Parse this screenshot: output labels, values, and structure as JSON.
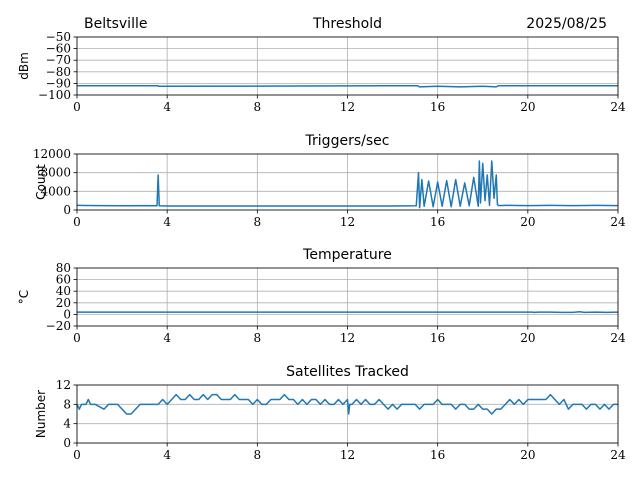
{
  "header": {
    "location": "Beltsville",
    "date": "2025/08/25"
  },
  "colors": {
    "series": "#1f77b4",
    "grid": "#b0b0b0"
  },
  "chart_data": [
    {
      "type": "line",
      "title": "Threshold",
      "ylabel": "dBm",
      "xlim": [
        0,
        24
      ],
      "ylim": [
        -100,
        -50
      ],
      "xticks": [
        0,
        4,
        8,
        12,
        16,
        20,
        24
      ],
      "yticks": [
        -100,
        -90,
        -80,
        -70,
        -60,
        -50
      ],
      "ytick_labels": [
        "−100",
        "−90",
        "−80",
        "−70",
        "−60",
        "−50"
      ],
      "grid": true,
      "x": [
        0,
        3.6,
        3.62,
        15.1,
        15.2,
        16,
        17,
        18,
        18.6,
        18.7,
        24
      ],
      "y": [
        -92,
        -92,
        -92.5,
        -92,
        -93,
        -92.5,
        -93,
        -92.5,
        -93,
        -92,
        -92
      ]
    },
    {
      "type": "line",
      "title": "Triggers/sec",
      "ylabel": "Count",
      "xlim": [
        0,
        24
      ],
      "ylim": [
        0,
        12000
      ],
      "xticks": [
        0,
        4,
        8,
        12,
        16,
        20,
        24
      ],
      "yticks": [
        0,
        4000,
        8000,
        12000
      ],
      "ytick_labels": [
        "0",
        "4000",
        "8000",
        "12000"
      ],
      "grid": true,
      "x": [
        0,
        1,
        2,
        3,
        3.55,
        3.6,
        3.65,
        4,
        6,
        8,
        10,
        12,
        14,
        15.05,
        15.15,
        15.2,
        15.3,
        15.4,
        15.6,
        15.8,
        16,
        16.2,
        16.4,
        16.6,
        16.8,
        17,
        17.2,
        17.4,
        17.6,
        17.8,
        17.85,
        17.9,
        18,
        18.1,
        18.2,
        18.3,
        18.4,
        18.5,
        18.6,
        18.65,
        18.7,
        19,
        20,
        21,
        22,
        23,
        24
      ],
      "y": [
        1000,
        950,
        900,
        950,
        900,
        7500,
        900,
        850,
        850,
        850,
        850,
        850,
        850,
        900,
        8000,
        500,
        6500,
        800,
        6200,
        700,
        6000,
        800,
        6300,
        700,
        6500,
        800,
        5800,
        900,
        7000,
        800,
        10500,
        1500,
        10000,
        2000,
        7500,
        1000,
        10500,
        2500,
        7500,
        1200,
        950,
        1000,
        950,
        1000,
        950,
        1000,
        950
      ]
    },
    {
      "type": "line",
      "title": "Temperature",
      "ylabel": "°C",
      "xlim": [
        0,
        24
      ],
      "ylim": [
        -20,
        80
      ],
      "xticks": [
        0,
        4,
        8,
        12,
        16,
        20,
        24
      ],
      "yticks": [
        -20,
        0,
        20,
        40,
        60,
        80
      ],
      "ytick_labels": [
        "−20",
        "0",
        "20",
        "40",
        "60",
        "80"
      ],
      "grid": true,
      "x": [
        0,
        6,
        12,
        18,
        20.2,
        20.25,
        20.5,
        21,
        21.5,
        22,
        22.3,
        22.5,
        23,
        23.5,
        24
      ],
      "y": [
        4,
        4,
        4,
        4,
        4,
        3.5,
        4,
        4,
        3.5,
        3.5,
        4.5,
        3.5,
        4,
        3.5,
        4
      ]
    },
    {
      "type": "line",
      "title": "Satellites Tracked",
      "ylabel": "Number",
      "xlim": [
        0,
        24
      ],
      "ylim": [
        0,
        12
      ],
      "xticks": [
        0,
        4,
        8,
        12,
        16,
        20,
        24
      ],
      "yticks": [
        0,
        4,
        8,
        12
      ],
      "ytick_labels": [
        "0",
        "4",
        "8",
        "12"
      ],
      "grid": true,
      "x": [
        0,
        0.1,
        0.2,
        0.4,
        0.5,
        0.6,
        0.7,
        0.8,
        1.2,
        1.4,
        1.6,
        1.8,
        2.0,
        2.2,
        2.4,
        2.6,
        2.8,
        3.0,
        3.2,
        3.4,
        3.6,
        3.8,
        4.0,
        4.2,
        4.4,
        4.6,
        4.8,
        5.0,
        5.2,
        5.4,
        5.6,
        5.8,
        6.0,
        6.2,
        6.4,
        6.6,
        6.8,
        7.0,
        7.2,
        7.4,
        7.6,
        7.8,
        8.0,
        8.2,
        8.4,
        8.6,
        8.8,
        9.0,
        9.2,
        9.4,
        9.6,
        9.8,
        10.0,
        10.2,
        10.4,
        10.6,
        10.8,
        11.0,
        11.2,
        11.4,
        11.6,
        11.8,
        12.0,
        12.05,
        12.1,
        12.2,
        12.4,
        12.6,
        12.8,
        13.0,
        13.2,
        13.4,
        13.6,
        13.8,
        14.0,
        14.2,
        14.4,
        14.6,
        14.8,
        15.0,
        15.2,
        15.4,
        15.6,
        15.8,
        16.0,
        16.2,
        16.4,
        16.6,
        16.8,
        17.0,
        17.2,
        17.4,
        17.6,
        17.8,
        18.0,
        18.2,
        18.4,
        18.6,
        18.8,
        19.0,
        19.2,
        19.4,
        19.6,
        19.8,
        20.0,
        20.2,
        20.4,
        20.6,
        20.8,
        21.0,
        21.2,
        21.4,
        21.6,
        21.8,
        22.0,
        22.2,
        22.4,
        22.6,
        22.8,
        23.0,
        23.2,
        23.4,
        23.6,
        23.8,
        24
      ],
      "y": [
        8,
        7,
        8,
        8,
        9,
        8,
        8,
        8,
        7,
        8,
        8,
        8,
        7,
        6,
        6,
        7,
        8,
        8,
        8,
        8,
        8,
        9,
        8,
        9,
        10,
        9,
        9,
        10,
        9,
        9,
        10,
        9,
        10,
        10,
        9,
        9,
        9,
        10,
        9,
        9,
        9,
        8,
        9,
        8,
        8,
        9,
        9,
        9,
        10,
        9,
        9,
        8,
        9,
        8,
        9,
        9,
        8,
        9,
        8,
        8,
        9,
        8,
        9,
        6,
        8,
        8,
        9,
        8,
        9,
        8,
        8,
        9,
        8,
        7,
        8,
        7,
        8,
        8,
        8,
        8,
        7,
        8,
        8,
        8,
        9,
        8,
        8,
        8,
        7,
        8,
        8,
        7,
        7,
        8,
        7,
        7,
        6,
        7,
        7,
        8,
        9,
        8,
        9,
        8,
        9,
        9,
        9,
        9,
        9,
        10,
        9,
        8,
        9,
        7,
        8,
        8,
        8,
        7,
        8,
        8,
        7,
        8,
        7,
        8,
        8
      ]
    }
  ]
}
